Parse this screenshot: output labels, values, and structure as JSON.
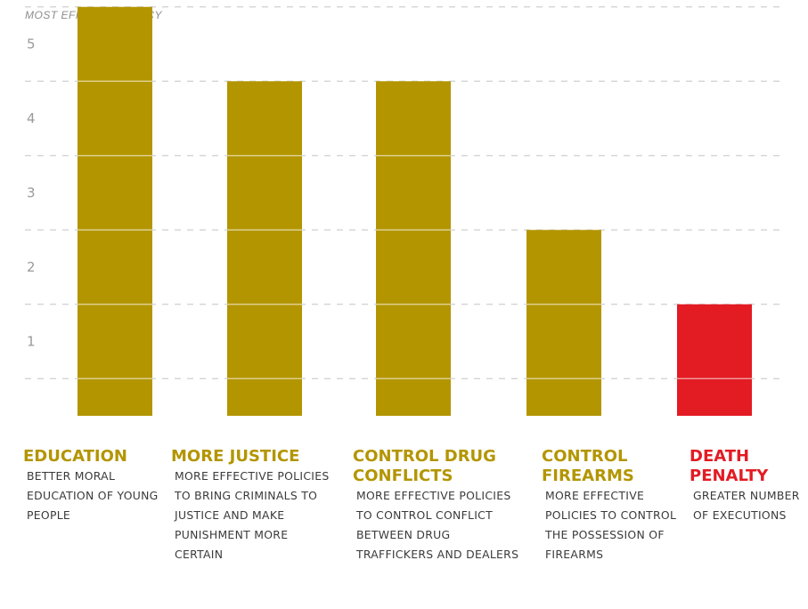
{
  "chart_data": {
    "type": "bar",
    "title": "MOST EFFICENT POLICY",
    "ylim": [
      0,
      5.5
    ],
    "yticks": [
      1,
      2,
      3,
      4,
      5
    ],
    "grid": true,
    "categories": [
      {
        "label": "EDUCATION",
        "description": "BETTER MORAL EDUCATION OF YOUNG PEOPLE",
        "value": 5.5,
        "color": "#B39500"
      },
      {
        "label": "MORE JUSTICE",
        "description": "MORE EFFECTIVE POLICIES TO BRING CRIMINALS TO JUSTICE AND MAKE PUNISHMENT MORE CERTAIN",
        "value": 4.5,
        "color": "#B39500"
      },
      {
        "label": "CONTROL DRUG CONFLICTS",
        "description": "MORE EFFECTIVE POLICIES TO CONTROL CONFLICT BETWEEN DRUG TRAFFICKERS AND DEALERS",
        "value": 4.5,
        "color": "#B39500"
      },
      {
        "label": "CONTROL FIREARMS",
        "description": "MORE EFFECTIVE POLICIES TO CONTROL THE POSSESSION OF FIREARMS",
        "value": 2.5,
        "color": "#B39500"
      },
      {
        "label": "DEATH PENALTY",
        "description": "GREATER NUMBER OF EXECUTIONS",
        "value": 1.5,
        "color": "#E31B23"
      }
    ]
  }
}
